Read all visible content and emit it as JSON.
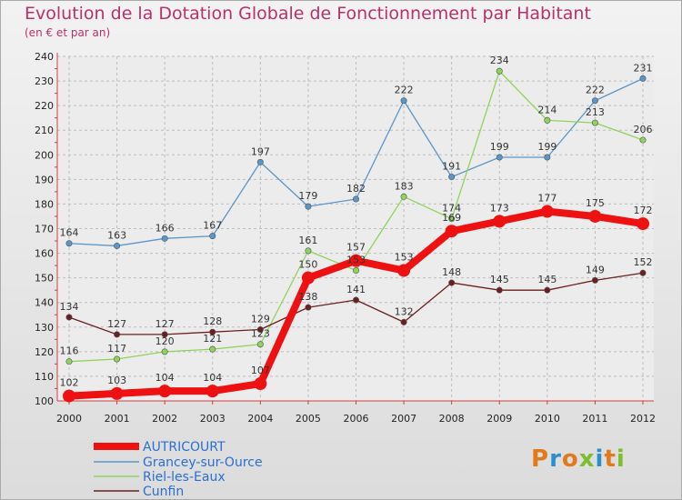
{
  "header": {
    "title": "Evolution de la Dotation Globale de Fonctionnement par Habitant",
    "subtitle": "(en € et par an)"
  },
  "logo": {
    "text": "Proxiti",
    "colors": [
      "#e07a1a",
      "#2a8fd0",
      "#e07a1a",
      "#7bbf2a",
      "#2a8fd0",
      "#e07a1a",
      "#7bbf2a"
    ]
  },
  "chart_data": {
    "type": "line",
    "title": "Evolution de la Dotation Globale de Fonctionnement par Habitant",
    "subtitle": "(en € et par an)",
    "xlabel": "",
    "ylabel": "",
    "ylim": [
      100,
      240
    ],
    "yticks": [
      100,
      110,
      120,
      130,
      140,
      150,
      160,
      170,
      180,
      190,
      200,
      210,
      220,
      230,
      240
    ],
    "grid": true,
    "legend_position": "bottom-left",
    "x": [
      "2000",
      "2001",
      "2002",
      "2003",
      "2004",
      "2005",
      "2006",
      "2007",
      "2008",
      "2009",
      "2010",
      "2011",
      "2012"
    ],
    "series": [
      {
        "name": "AUTRICOURT",
        "color": "#ee1111",
        "values": [
          102,
          103,
          104,
          104,
          107,
          150,
          157,
          153,
          169,
          173,
          177,
          175,
          172
        ]
      },
      {
        "name": "Grancey-sur-Ource",
        "color": "#5b96c8",
        "values": [
          164,
          163,
          166,
          167,
          197,
          179,
          182,
          222,
          191,
          199,
          199,
          222,
          231
        ]
      },
      {
        "name": "Riel-les-Eaux",
        "color": "#8fd35c",
        "values": [
          116,
          117,
          120,
          121,
          123,
          161,
          153,
          183,
          174,
          234,
          214,
          213,
          206
        ]
      },
      {
        "name": "Cunfin",
        "color": "#6b1f1f",
        "values": [
          134,
          127,
          127,
          128,
          129,
          138,
          141,
          132,
          148,
          145,
          145,
          149,
          152
        ]
      }
    ]
  }
}
